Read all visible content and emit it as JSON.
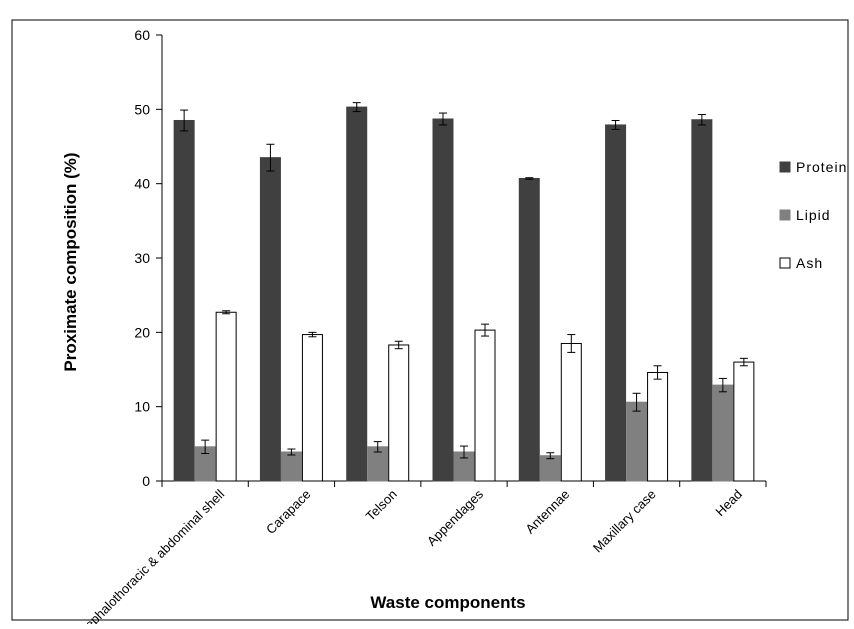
{
  "chart_data": {
    "type": "bar",
    "title": "",
    "xlabel": "Waste components",
    "ylabel": "Proximate composition (%)",
    "ylim": [
      0,
      60
    ],
    "yticks": [
      0,
      10,
      20,
      30,
      40,
      50,
      60
    ],
    "grid": false,
    "legend_position": "right",
    "categories": [
      "Cephalothoracic & abdominal shell",
      "Carapace",
      "Telson",
      "Appendages",
      "Antennae",
      "Maxillary case",
      "Head"
    ],
    "series": [
      {
        "name": "Protein",
        "color": "#404040",
        "values": [
          48.5,
          43.5,
          50.3,
          48.7,
          40.7,
          47.9,
          48.6
        ],
        "errors": [
          1.4,
          1.8,
          0.6,
          0.8,
          0.1,
          0.6,
          0.7
        ]
      },
      {
        "name": "Lipid",
        "color": "#808080",
        "values": [
          4.6,
          3.9,
          4.6,
          3.9,
          3.4,
          10.6,
          12.9
        ],
        "errors": [
          0.9,
          0.4,
          0.7,
          0.8,
          0.4,
          1.2,
          0.9
        ]
      },
      {
        "name": "Ash",
        "color": "#ffffff",
        "values": [
          22.7,
          19.7,
          18.3,
          20.3,
          18.5,
          14.6,
          16.0
        ],
        "errors": [
          0.2,
          0.3,
          0.5,
          0.8,
          1.2,
          0.9,
          0.5
        ]
      }
    ]
  }
}
